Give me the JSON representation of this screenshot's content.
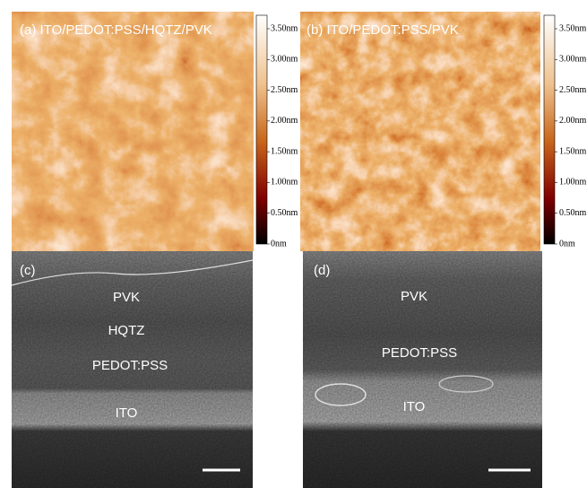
{
  "panels": [
    {
      "label": "(a) ITO/PEDOT:PSS/HQTZ/PVK",
      "colorbar_ticks": [
        "3.50nm",
        "3.00nm",
        "2.50nm",
        "2.00nm",
        "1.50nm",
        "1.00nm",
        "0.50nm",
        "0nm"
      ]
    },
    {
      "label": "(b) ITO/PEDOT:PSS/PVK",
      "colorbar_ticks": [
        "3.50nm",
        "3.00nm",
        "2.50nm",
        "2.00nm",
        "1.50nm",
        "1.00nm",
        "0.50nm",
        "0nm"
      ]
    },
    {
      "label": "(c)",
      "layers": [
        "PVK",
        "HQTZ",
        "PEDOT:PSS",
        "ITO"
      ]
    },
    {
      "label": "(d)",
      "layers": [
        "PVK",
        "PEDOT:PSS",
        "ITO"
      ]
    }
  ]
}
